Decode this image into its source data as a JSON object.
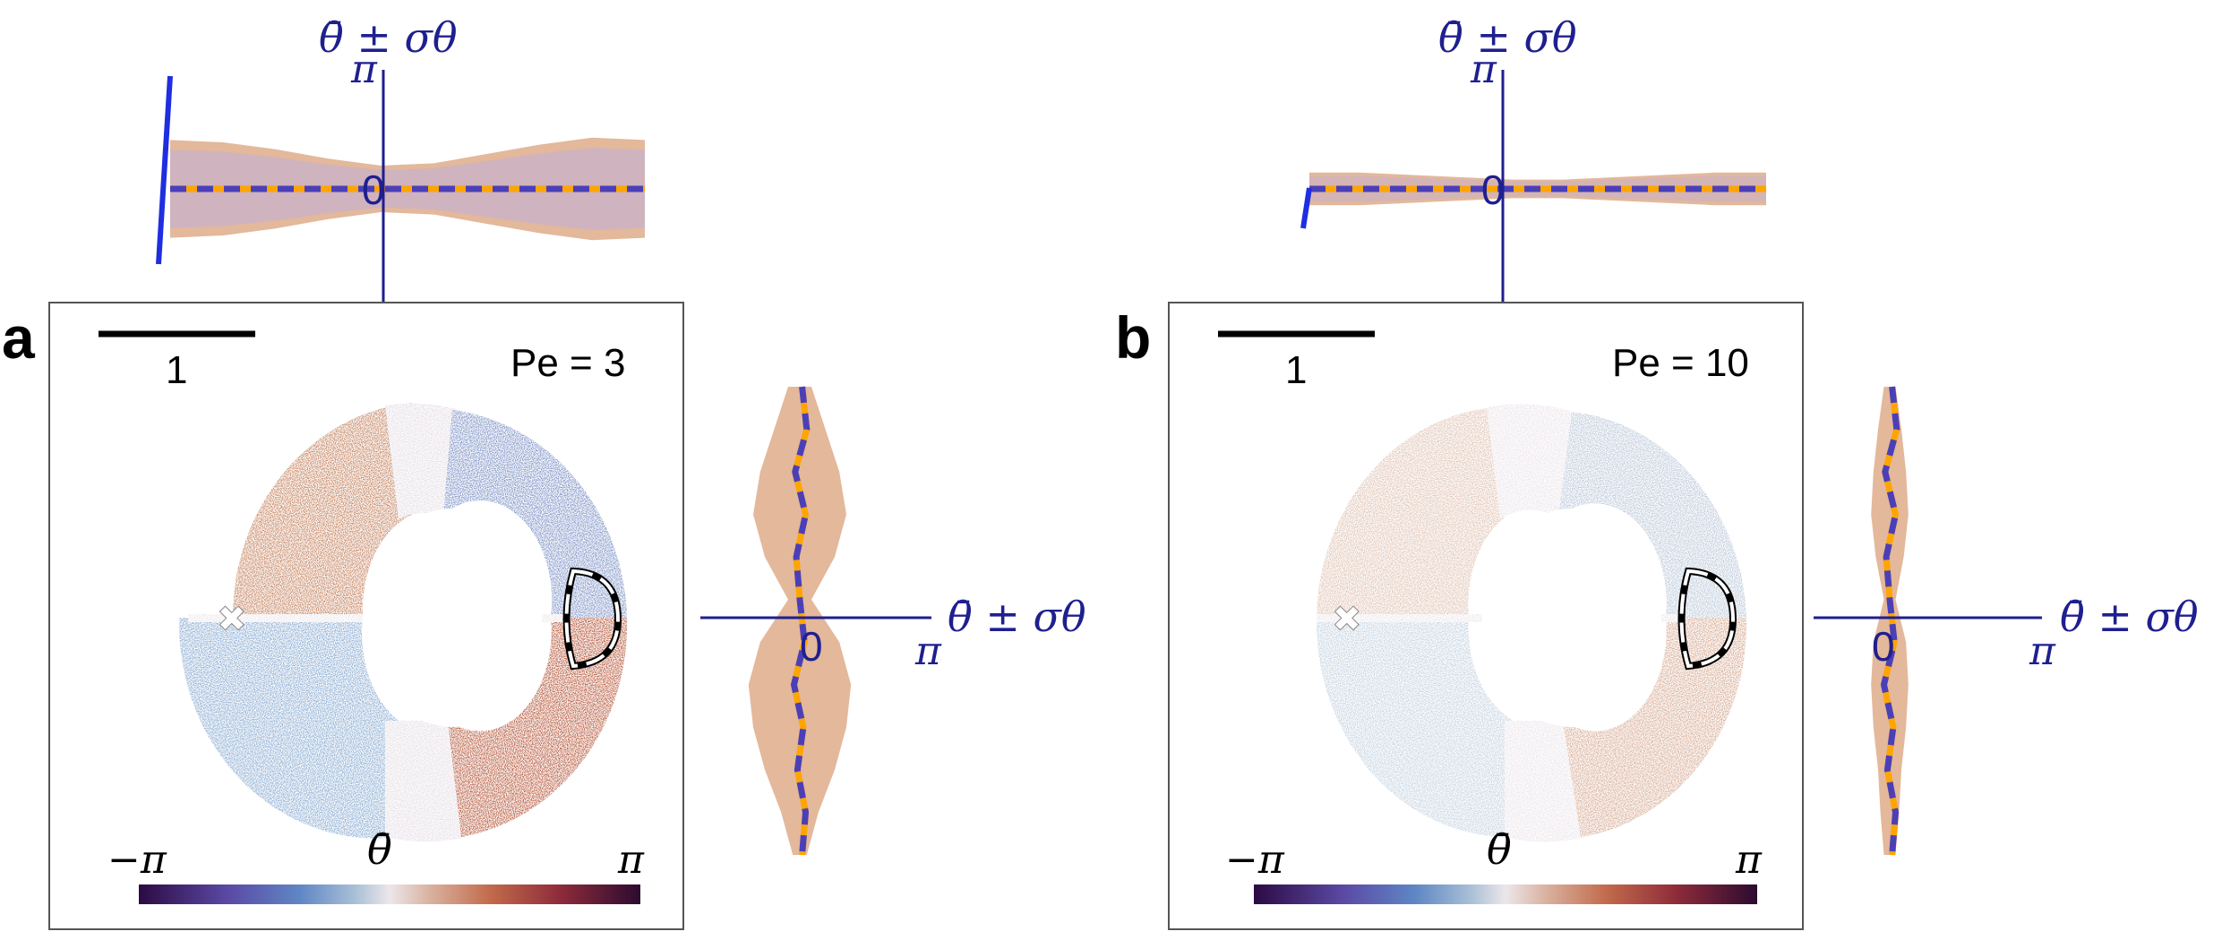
{
  "panels": [
    {
      "id": "a",
      "letter": "a",
      "scale_bar_label": "1",
      "pe_label": "Pe = 3",
      "cbar_min": "−π",
      "cbar_mid": "θ̄",
      "cbar_max": "π",
      "top_axis_label": "θ̄ ± σθ",
      "top_axis_pi": "π",
      "top_zero": "0",
      "right_axis_label": "θ̄ ± σθ",
      "right_axis_pi": "π",
      "right_zero": "0",
      "color_strength": 1.0,
      "top_band_half_width": [
        0.42,
        0.4,
        0.34,
        0.26,
        0.2,
        0.22,
        0.3,
        0.38,
        0.44,
        0.42
      ],
      "right_band_half_width": [
        0.1,
        0.22,
        0.34,
        0.4,
        0.3,
        0.1,
        0.34,
        0.44,
        0.4,
        0.3,
        0.16,
        0.06
      ]
    },
    {
      "id": "b",
      "letter": "b",
      "scale_bar_label": "1",
      "pe_label": "Pe = 10",
      "cbar_min": "−π",
      "cbar_mid": "θ̄",
      "cbar_max": "π",
      "top_axis_label": "θ̄ ± σθ",
      "top_axis_pi": "π",
      "top_zero": "0",
      "right_axis_label": "θ̄ ± σθ",
      "right_axis_pi": "π",
      "right_zero": "0",
      "color_strength": 0.45,
      "top_band_half_width": [
        0.14,
        0.14,
        0.12,
        0.1,
        0.08,
        0.08,
        0.1,
        0.12,
        0.14,
        0.14
      ],
      "right_band_half_width": [
        0.05,
        0.1,
        0.14,
        0.16,
        0.12,
        0.05,
        0.14,
        0.16,
        0.14,
        0.1,
        0.08,
        0.05
      ]
    }
  ],
  "colors": {
    "axis_navy": "#1f1f8f",
    "mean_blue": "#4b3fb8",
    "mean_orange": "#ffa500",
    "band_fill": "#d9a07a",
    "band_fill2": "#a8a8ff",
    "cmap_neg_dark": "#2c0b43",
    "cmap_neg": "#4a72c0",
    "cmap_neg_light": "#9ab6d6",
    "cmap_mid": "#ece6ea",
    "cmap_pos_light": "#d9aa90",
    "cmap_pos": "#b2492e",
    "cmap_pos_dark": "#2c0b30"
  }
}
